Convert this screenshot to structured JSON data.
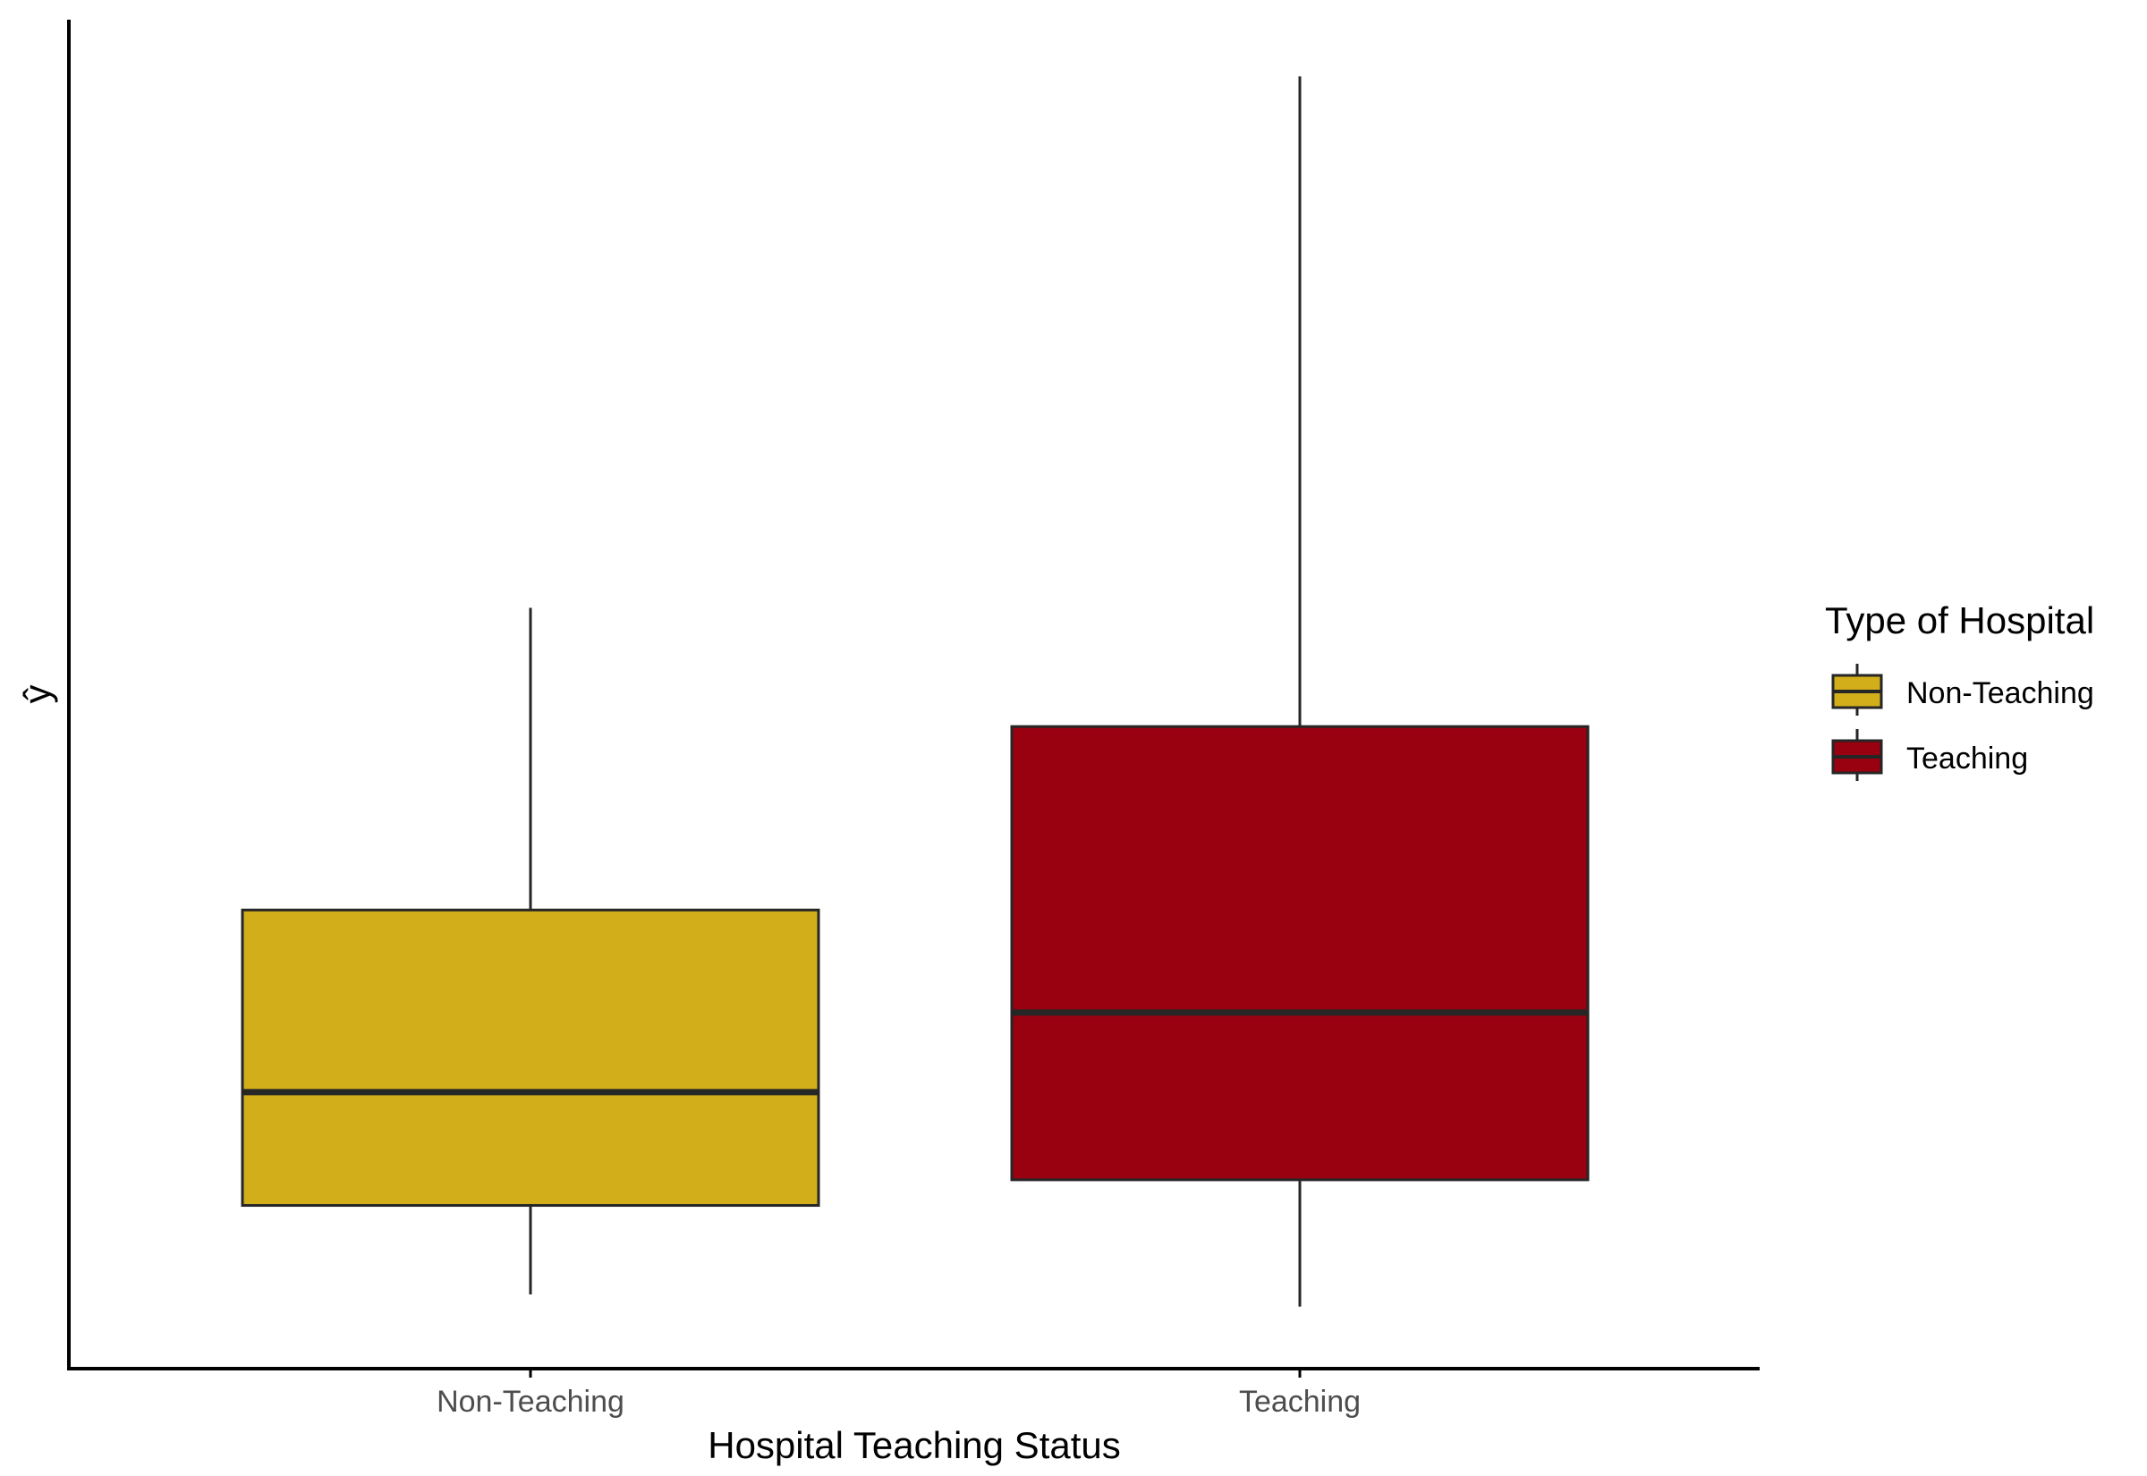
{
  "chart_data": {
    "type": "boxplot",
    "title": "",
    "xlabel": "Hospital Teaching Status",
    "ylabel": "ŷ",
    "categories": [
      "Non-Teaching",
      "Teaching"
    ],
    "ylim": [
      0,
      100
    ],
    "y_ticks_shown": false,
    "grid": false,
    "boxes": [
      {
        "category": "Non-Teaching",
        "whisker_low": 5.5,
        "q1": 12.1,
        "median": 20.5,
        "q3": 34.0,
        "whisker_high": 56.4,
        "fill": "#D1AE1A"
      },
      {
        "category": "Teaching",
        "whisker_low": 4.6,
        "q1": 14.0,
        "median": 26.4,
        "q3": 47.6,
        "whisker_high": 95.8,
        "fill": "#990010"
      }
    ],
    "legend": {
      "title": "Type of Hospital",
      "position": "right",
      "items": [
        {
          "label": "Non-Teaching",
          "color": "#D1AE1A"
        },
        {
          "label": "Teaching",
          "color": "#990010"
        }
      ]
    },
    "colors": {
      "non_teaching": "#D1AE1A",
      "teaching": "#990010",
      "outline": "#262626",
      "axis": "#000000"
    }
  }
}
